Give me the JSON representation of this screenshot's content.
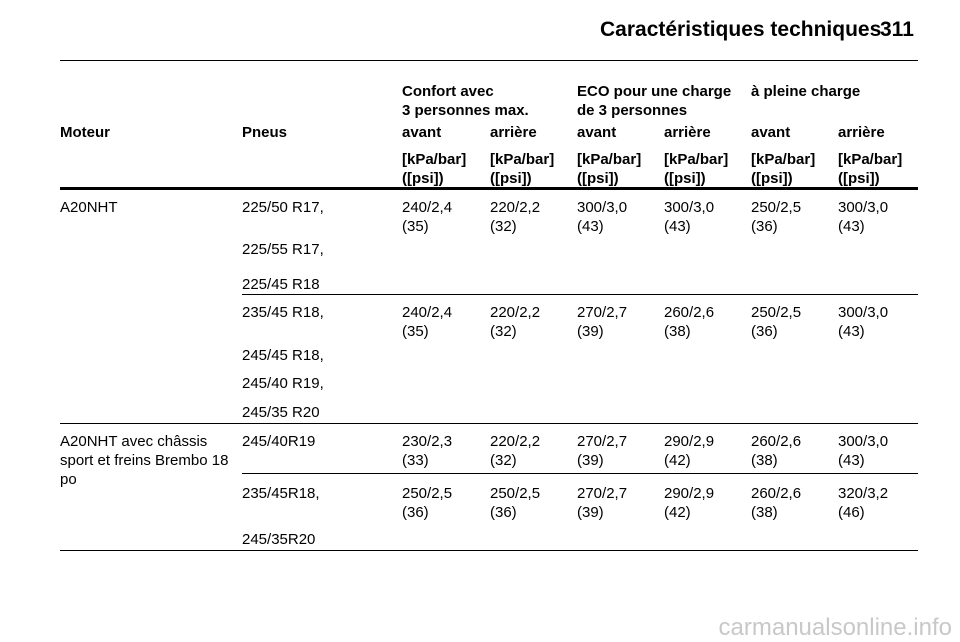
{
  "header": {
    "title": "Caractéristiques techniques",
    "page": "311"
  },
  "table": {
    "group_headers": [
      {
        "label": "Confort avec\n3 personnes max."
      },
      {
        "label": "ECO pour une charge\nde 3 personnes"
      },
      {
        "label": "à pleine charge"
      }
    ],
    "columns": [
      "Moteur",
      "Pneus",
      "avant",
      "arrière",
      "avant",
      "arrière",
      "avant",
      "arrière"
    ],
    "units": [
      "[kPa/bar]\n([psi])",
      "[kPa/bar]\n([psi])",
      "[kPa/bar]\n([psi])",
      "[kPa/bar]\n([psi])",
      "[kPa/bar]\n([psi])",
      "[kPa/bar]\n([psi])"
    ],
    "groups": [
      {
        "engine": "A20NHT",
        "subgroups": [
          {
            "tires": [
              "225/50 R17,",
              "225/55 R17,",
              "225/45 R18"
            ],
            "values": [
              "240/2,4\n(35)",
              "220/2,2\n(32)",
              "300/3,0\n(43)",
              "300/3,0\n(43)",
              "250/2,5\n(36)",
              "300/3,0\n(43)"
            ]
          },
          {
            "tires": [
              "235/45 R18,",
              "245/45 R18,",
              "245/40 R19,",
              "245/35 R20"
            ],
            "values": [
              "240/2,4\n(35)",
              "220/2,2\n(32)",
              "270/2,7\n(39)",
              "260/2,6\n(38)",
              "250/2,5\n(36)",
              "300/3,0\n(43)"
            ]
          }
        ]
      },
      {
        "engine": "A20NHT avec châssis\nsport et freins Brembo 18\npo",
        "subgroups": [
          {
            "tires": [
              "245/40R19"
            ],
            "values": [
              "230/2,3\n(33)",
              "220/2,2\n(32)",
              "270/2,7\n(39)",
              "290/2,9\n(42)",
              "260/2,6\n(38)",
              "300/3,0\n(43)"
            ]
          },
          {
            "tires": [
              "235/45R18,",
              "245/35R20"
            ],
            "values": [
              "250/2,5\n(36)",
              "250/2,5\n(36)",
              "270/2,7\n(39)",
              "290/2,9\n(42)",
              "260/2,6\n(38)",
              "320/3,2\n(46)"
            ]
          }
        ]
      }
    ]
  },
  "watermark": "carmanualsonline.info"
}
